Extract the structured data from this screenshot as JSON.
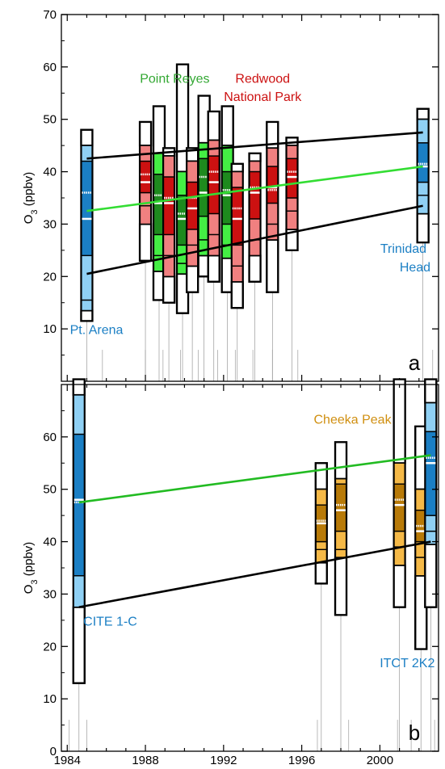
{
  "colors": {
    "point_reyes": "#33a833",
    "point_reyes_light": "#44ee44",
    "point_reyes_dark": "#1e8a1e",
    "redwood": "#cc1111",
    "redwood_light": "#f08080",
    "blue": "#1b7fc4",
    "blue_light": "#8fd0f4",
    "cheeka": "#d08f10",
    "cheeka_light": "#f5b947",
    "cheeka_dark": "#b87a08",
    "trend_green": "#33dd33",
    "trend_green_b": "#22bb22",
    "trend_black": "#000000"
  },
  "chart_data": [
    {
      "panel": "a",
      "type": "box",
      "ylabel": "O3 (ppbv)",
      "ylim": [
        0,
        70
      ],
      "yticks": [
        10,
        20,
        30,
        40,
        50,
        60,
        70
      ],
      "xlim": [
        1983.7,
        2003.0
      ],
      "panel_label": "a",
      "site_labels": [
        {
          "id": "point-reyes",
          "text": "Point Reyes",
          "color": "#33a833",
          "x": 1989.5,
          "y": 57
        },
        {
          "id": "redwood-1",
          "text": "Redwood",
          "color": "#cc1111",
          "x": 1994.0,
          "y": 57
        },
        {
          "id": "redwood-2",
          "text": "National Park",
          "color": "#cc1111",
          "x": 1994.0,
          "y": 53.5
        },
        {
          "id": "pt-arena",
          "text": "Pt. Arena",
          "color": "#1b7fc4",
          "x": 1985.5,
          "y": 9
        },
        {
          "id": "trinidad-1",
          "text": "Trinidad",
          "color": "#1b7fc4",
          "x": 2001.2,
          "y": 24.5
        },
        {
          "id": "trinidad-2",
          "text": "Head",
          "color": "#1b7fc4",
          "x": 2001.8,
          "y": 21
        }
      ],
      "series": [
        {
          "site": "Pt. Arena",
          "scheme": "blue",
          "x": 1985.0,
          "min": 11.5,
          "p05": 13.5,
          "p10": 15.5,
          "p25": 24,
          "median": 31,
          "mean": 36,
          "p75": 42,
          "p90": 45,
          "p95": 48
        },
        {
          "site": "Redwood",
          "scheme": "red",
          "x": 1988.0,
          "min": 23,
          "p05": 30,
          "p10": 33.5,
          "p25": 36,
          "median": 38,
          "mean": 39.5,
          "p75": 42,
          "p90": 45,
          "p95": 49.5
        },
        {
          "site": "Point Reyes",
          "scheme": "green",
          "x": 1988.7,
          "min": 15.5,
          "p05": 21,
          "p10": 24,
          "p25": 28,
          "median": 34,
          "mean": 35.5,
          "p75": 39.5,
          "p90": 43.5,
          "p95": 52.5
        },
        {
          "site": "Redwood",
          "scheme": "red",
          "x": 1989.2,
          "min": 15,
          "p05": 20,
          "p10": 24,
          "p25": 28,
          "median": 34,
          "mean": 35,
          "p75": 39,
          "p90": 43,
          "p95": 44.5
        },
        {
          "site": "Point Reyes",
          "scheme": "green",
          "x": 1989.9,
          "min": 13,
          "p05": 20.5,
          "p10": 22.5,
          "p25": 26,
          "median": 31,
          "mean": 32,
          "p75": 35.5,
          "p90": 40,
          "p95": 60.5
        },
        {
          "site": "Redwood",
          "scheme": "red",
          "x": 1990.4,
          "min": 17,
          "p05": 22,
          "p10": 26,
          "p25": 29,
          "median": 33,
          "mean": 35,
          "p75": 38,
          "p90": 42,
          "p95": 44.5
        },
        {
          "site": "Point Reyes",
          "scheme": "green",
          "x": 1991.0,
          "min": 20,
          "p05": 24,
          "p10": 27,
          "p25": 31.5,
          "median": 36,
          "mean": 39,
          "p75": 42.5,
          "p90": 45.5,
          "p95": 54.5
        },
        {
          "site": "Redwood",
          "scheme": "red",
          "x": 1991.5,
          "min": 19,
          "p05": 24,
          "p10": 28,
          "p25": 32,
          "median": 38,
          "mean": 40,
          "p75": 43,
          "p90": 46,
          "p95": 51.5
        },
        {
          "site": "Point Reyes",
          "scheme": "green",
          "x": 1992.2,
          "min": 17,
          "p05": 23.5,
          "p10": 26,
          "p25": 30,
          "median": 35.5,
          "mean": 36.5,
          "p75": 40,
          "p90": 45,
          "p95": 52.5
        },
        {
          "site": "Redwood",
          "scheme": "red",
          "x": 1992.7,
          "min": 14,
          "p05": 19,
          "p10": 22,
          "p25": 26,
          "median": 31,
          "mean": 33,
          "p75": 37,
          "p90": 40,
          "p95": 41.5
        },
        {
          "site": "Redwood",
          "scheme": "red",
          "x": 1993.6,
          "min": 19,
          "p05": 24,
          "p10": 27,
          "p25": 31,
          "median": 36,
          "mean": 37,
          "p75": 40,
          "p90": 42,
          "p95": 43.5
        },
        {
          "site": "Redwood",
          "scheme": "red",
          "x": 1994.5,
          "min": 17,
          "p05": 27,
          "p10": 30,
          "p25": 34,
          "median": 37,
          "mean": 36.5,
          "p75": 41,
          "p90": 44.5,
          "p95": 49.5
        },
        {
          "site": "Redwood",
          "scheme": "red",
          "x": 1995.5,
          "min": 25,
          "p05": 29,
          "p10": 32.5,
          "p25": 35,
          "median": 39,
          "mean": 40,
          "p75": 42.5,
          "p90": 45,
          "p95": 46.5
        },
        {
          "site": "Trinidad Head",
          "scheme": "blue",
          "x": 2002.2,
          "min": 26.5,
          "p05": 32,
          "p10": 35.5,
          "p25": 38,
          "median": 41,
          "mean": 41.5,
          "p75": 45.5,
          "p90": 50,
          "p95": 52
        }
      ],
      "trend_lines": [
        {
          "name": "upper",
          "color": "#000000",
          "x": [
            1985.0,
            2002.2
          ],
          "y": [
            42.5,
            47.5
          ]
        },
        {
          "name": "mean",
          "color": "#33dd33",
          "x": [
            1985.0,
            2002.2
          ],
          "y": [
            32.5,
            41
          ]
        },
        {
          "name": "lower",
          "color": "#000000",
          "x": [
            1985.0,
            2002.2
          ],
          "y": [
            20.5,
            33.5
          ]
        }
      ],
      "thin_lines_x": [
        1985.8,
        1988.0,
        1988.9,
        1989.8,
        1990.7,
        1991.7,
        1992.6,
        1993.5,
        1994.5,
        1995.8,
        2002.7
      ]
    },
    {
      "panel": "b",
      "type": "box",
      "ylabel": "O3 (ppbv)",
      "ylim": [
        0,
        70
      ],
      "yticks": [
        0,
        10,
        20,
        30,
        40,
        50,
        60
      ],
      "xlim": [
        1983.7,
        2003.0
      ],
      "xticks": [
        1984,
        1988,
        1992,
        1996,
        2000
      ],
      "panel_label": "b",
      "site_labels": [
        {
          "id": "cheeka-peak",
          "text": "Cheeka Peak",
          "color": "#d08f10",
          "x": 1998.6,
          "y": 62.5
        },
        {
          "id": "cite-1c",
          "text": "CITE 1-C",
          "color": "#1b7fc4",
          "x": 1986.2,
          "y": 24
        },
        {
          "id": "itct-2k2",
          "text": "ITCT 2K2",
          "color": "#1b7fc4",
          "x": 2001.4,
          "y": 16
        }
      ],
      "series": [
        {
          "site": "CITE 1-C",
          "scheme": "blue",
          "x": 1984.6,
          "min": 13,
          "p05": 27.5,
          "p10": 33.5,
          "p25": 33.5,
          "median": 48,
          "mean": 47.5,
          "p75": 60.5,
          "p90": 68,
          "p95": 71
        },
        {
          "site": "Cheeka Peak",
          "scheme": "cheeka",
          "x": 1997.0,
          "min": 32,
          "p05": 36,
          "p10": 38.5,
          "p25": 40,
          "median": 43.5,
          "mean": 44,
          "p75": 47,
          "p90": 50,
          "p95": 55
        },
        {
          "site": "Cheeka Peak",
          "scheme": "cheeka",
          "x": 1998.0,
          "min": 26,
          "p05": 37,
          "p10": 38.5,
          "p25": 42,
          "median": 46,
          "mean": 47,
          "p75": 51,
          "p90": 52,
          "p95": 59
        },
        {
          "site": "Cheeka Peak",
          "scheme": "cheeka",
          "x": 2001.0,
          "min": 27.5,
          "p05": 35.5,
          "p10": 39,
          "p25": 42,
          "median": 47,
          "mean": 48,
          "p75": 51,
          "p90": 55,
          "p95": 71
        },
        {
          "site": "Cheeka Peak",
          "scheme": "cheeka",
          "x": 2002.1,
          "min": 19.5,
          "p05": 33.5,
          "p10": 37,
          "p25": 40,
          "median": 42,
          "mean": 43,
          "p75": 46,
          "p90": 50,
          "p95": 62
        },
        {
          "site": "ITCT 2K2",
          "scheme": "blue",
          "x": 2002.6,
          "min": 27.5,
          "p05": 39.5,
          "p10": 42,
          "p25": 45,
          "median": 55,
          "mean": 56,
          "p75": 61,
          "p90": 66.5,
          "p95": 71
        }
      ],
      "trend_lines": [
        {
          "name": "mean",
          "color": "#22bb22",
          "x": [
            1984.6,
            2002.6
          ],
          "y": [
            47.5,
            56.5
          ]
        },
        {
          "name": "lower",
          "color": "#000000",
          "x": [
            1984.6,
            2002.6
          ],
          "y": [
            27.5,
            40
          ]
        }
      ],
      "thin_lines_x": [
        1984.1,
        1985.0,
        1996.8,
        1998.4,
        2000.9,
        2001.6,
        2002.8
      ]
    }
  ]
}
